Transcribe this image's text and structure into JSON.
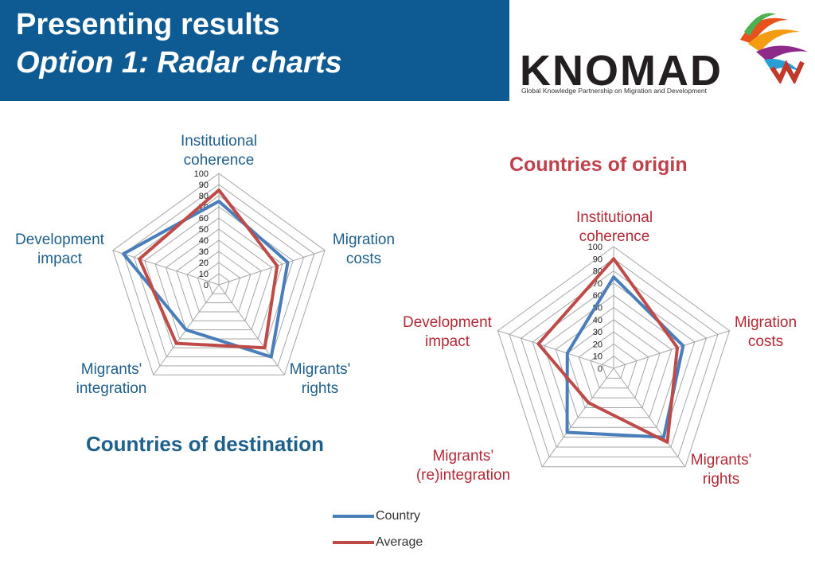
{
  "header": {
    "title_line1": "Presenting results",
    "title_line2": "Option 1: Radar charts"
  },
  "logo": {
    "name": "KNOMAD",
    "tagline": "Global Knowledge Partnership on Migration and Development"
  },
  "colors": {
    "header_bg": "#0e5a92",
    "country": "#4a7ebb",
    "average": "#be4b48",
    "destination_text": "#1f5f8b",
    "origin_text": "#b22a36"
  },
  "chart_data": [
    {
      "type": "radar",
      "title": "Countries of destination",
      "axes": [
        "Institutional coherence",
        "Migration costs",
        "Migrants' rights",
        "Migrants' integration",
        "Development impact"
      ],
      "axis_labels_lines": [
        [
          "Institutional",
          "coherence"
        ],
        [
          "Migration",
          "costs"
        ],
        [
          "Migrants'",
          "rights"
        ],
        [
          "Migrants'",
          "integration"
        ],
        [
          "Development",
          "impact"
        ]
      ],
      "ticks": [
        "0",
        "10",
        "20",
        "30",
        "40",
        "50",
        "60",
        "70",
        "80",
        "90",
        "100"
      ],
      "range": [
        0,
        100
      ],
      "series": [
        {
          "name": "Country",
          "values": [
            75,
            65,
            80,
            50,
            90
          ]
        },
        {
          "name": "Average",
          "values": [
            85,
            55,
            70,
            65,
            75
          ]
        }
      ]
    },
    {
      "type": "radar",
      "title": "Countries of origin",
      "axes": [
        "Institutional coherence",
        "Migration costs",
        "Migrants' rights",
        "Migrants' (re)integration",
        "Development impact"
      ],
      "axis_labels_lines": [
        [
          "Institutional",
          "coherence"
        ],
        [
          "Migration",
          "costs"
        ],
        [
          "Migrants'",
          "rights"
        ],
        [
          "Migrants’",
          "(re)integration"
        ],
        [
          "Development",
          "impact"
        ]
      ],
      "ticks": [
        "0",
        "10",
        "20",
        "30",
        "40",
        "50",
        "60",
        "70",
        "80",
        "90",
        "100"
      ],
      "range": [
        0,
        100
      ],
      "series": [
        {
          "name": "Country",
          "values": [
            75,
            60,
            70,
            65,
            40
          ]
        },
        {
          "name": "Average",
          "values": [
            90,
            55,
            75,
            35,
            65
          ]
        }
      ]
    }
  ],
  "legend": [
    "Country",
    "Average"
  ]
}
